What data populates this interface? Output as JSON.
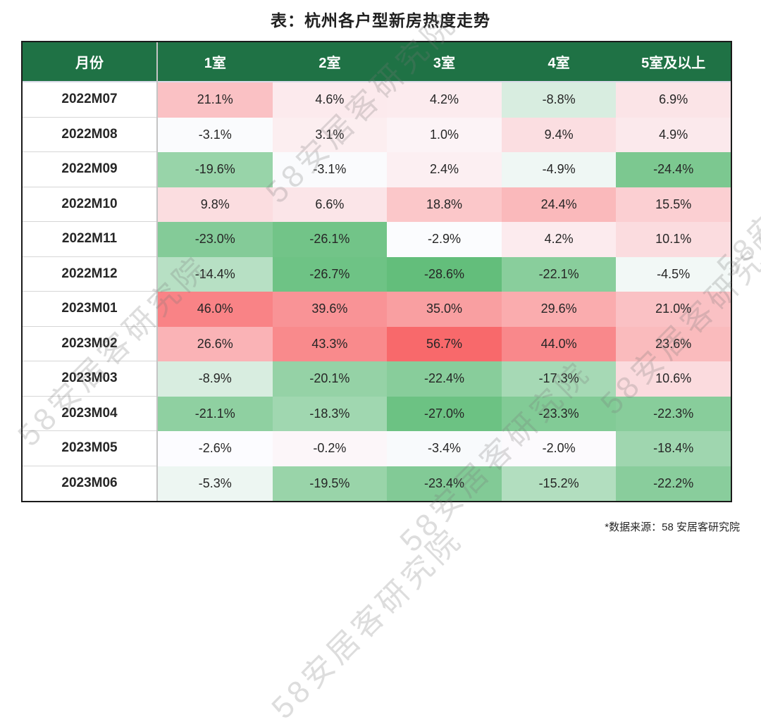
{
  "page": {
    "title": "表：杭州各户型新房热度走势",
    "source_note": "*数据来源：58 安居客研究院",
    "watermark_text": "58安居客研究院"
  },
  "chart_data": {
    "type": "heatmap",
    "title": "表：杭州各户型新房热度走势",
    "columns": [
      "月份",
      "1室",
      "2室",
      "3室",
      "4室",
      "5室及以上"
    ],
    "rows": [
      {
        "month": "2022M07",
        "values": [
          21.1,
          4.6,
          4.2,
          -8.8,
          6.9
        ]
      },
      {
        "month": "2022M08",
        "values": [
          -3.1,
          3.1,
          1.0,
          9.4,
          4.9
        ]
      },
      {
        "month": "2022M09",
        "values": [
          -19.6,
          -3.1,
          2.4,
          -4.9,
          -24.4
        ]
      },
      {
        "month": "2022M10",
        "values": [
          9.8,
          6.6,
          18.8,
          24.4,
          15.5
        ]
      },
      {
        "month": "2022M11",
        "values": [
          -23.0,
          -26.1,
          -2.9,
          4.2,
          10.1
        ]
      },
      {
        "month": "2022M12",
        "values": [
          -14.4,
          -26.7,
          -28.6,
          -22.1,
          -4.5
        ]
      },
      {
        "month": "2023M01",
        "values": [
          46.0,
          39.6,
          35.0,
          29.6,
          21.0
        ]
      },
      {
        "month": "2023M02",
        "values": [
          26.6,
          43.3,
          56.7,
          44.0,
          23.6
        ]
      },
      {
        "month": "2023M03",
        "values": [
          -8.9,
          -20.1,
          -22.4,
          -17.3,
          10.6
        ]
      },
      {
        "month": "2023M04",
        "values": [
          -21.1,
          -18.3,
          -27.0,
          -23.3,
          -22.3
        ]
      },
      {
        "month": "2023M05",
        "values": [
          -2.6,
          -0.2,
          -3.4,
          -2.0,
          -18.4
        ]
      },
      {
        "month": "2023M06",
        "values": [
          -5.3,
          -19.5,
          -23.4,
          -15.2,
          -22.2
        ]
      }
    ],
    "value_suffix": "%",
    "value_decimals": 1,
    "color_scale": {
      "min_value": -28.6,
      "mid_value": -2.75,
      "max_value": 56.7,
      "min_color": "#63BE7B",
      "mid_color": "#FCFCFF",
      "max_color": "#F8696B"
    },
    "header_bg": "#1F7245",
    "header_text_color": "#FFFFFF",
    "legend_position": "none",
    "grid": false,
    "source_note": "*数据来源：58 安居客研究院"
  }
}
